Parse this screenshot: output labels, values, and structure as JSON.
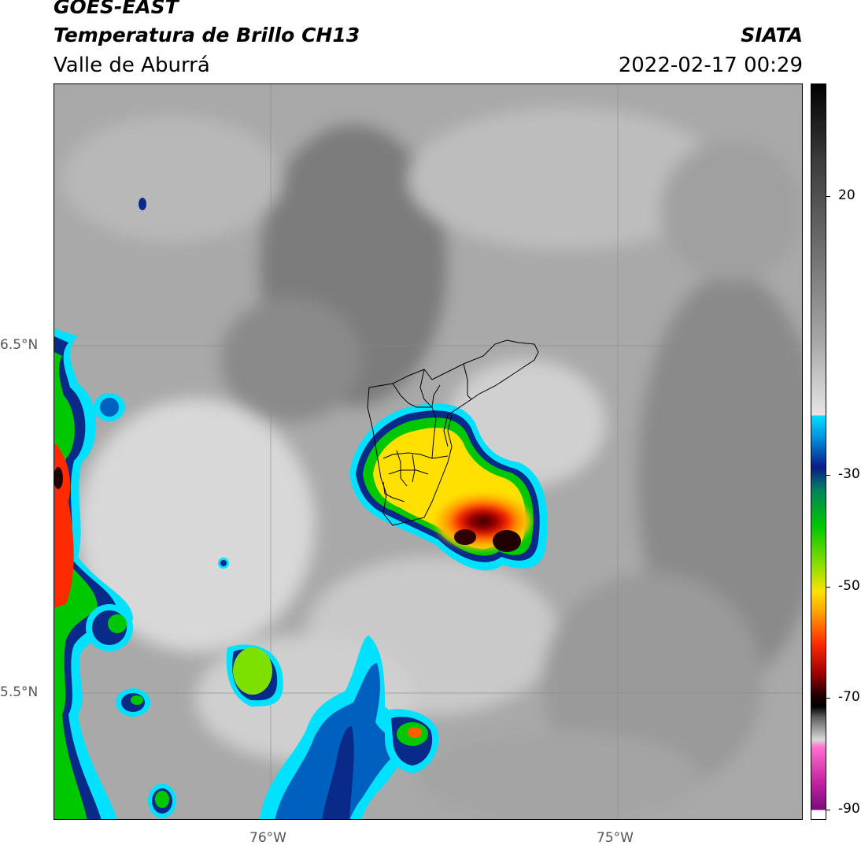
{
  "header": {
    "satellite": "GOES-EAST",
    "product": "Temperatura de Brillo CH13",
    "region": "Valle de Aburrá",
    "agency": "SIATA",
    "datetime": "2022-02-17 00:29"
  },
  "map": {
    "lon_labels": [
      "76°W",
      "75°W"
    ],
    "lat_labels": [
      "6.5°N",
      "5.5°N"
    ]
  },
  "colorbar": {
    "ticks": [
      "20",
      "-30",
      "-50",
      "-70",
      "-90"
    ]
  }
}
